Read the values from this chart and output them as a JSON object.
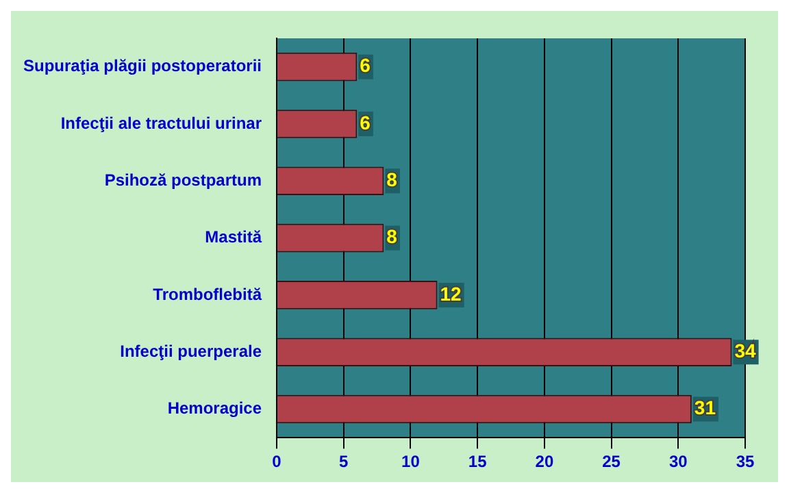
{
  "chart_data": {
    "type": "bar",
    "orientation": "horizontal",
    "categories": [
      "Supuraţia plăgii postoperatorii",
      "Infecţii ale tractului urinar",
      "Psihoză postpartum",
      "Mastită",
      "Tromboflebită",
      "Infecţii puerperale",
      "Hemoragice"
    ],
    "values": [
      6,
      6,
      8,
      8,
      12,
      34,
      31
    ],
    "color": "#b0404a",
    "xlim": [
      0,
      35
    ],
    "xticks": [
      0,
      5,
      10,
      15,
      20,
      25,
      30,
      35
    ],
    "grid": "x",
    "data_labels": true,
    "legend": false
  }
}
